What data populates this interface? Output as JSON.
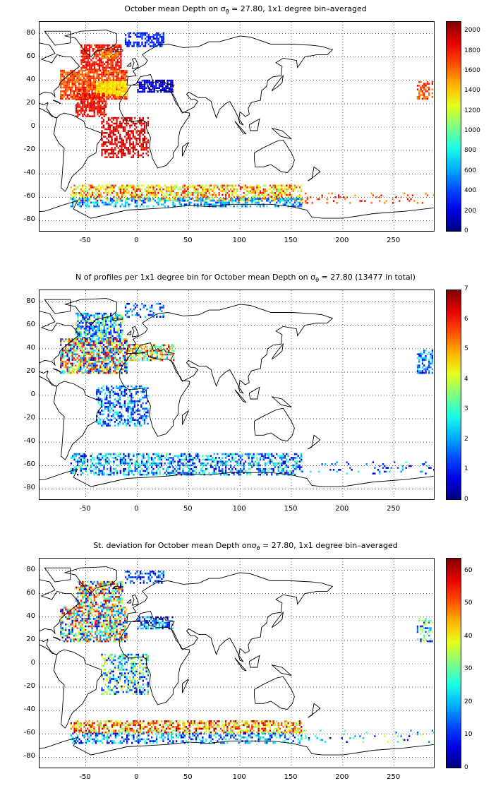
{
  "panels": [
    {
      "id": "depth",
      "title_pre": "October mean Depth on σ",
      "title_sub": "θ",
      "title_post": " = 27.80, 1x1 degree bin–averaged",
      "colorbar_ticks": [
        "2000",
        "1800",
        "1600",
        "1400",
        "1200",
        "1000",
        "800",
        "600",
        "400",
        "200",
        "0"
      ],
      "colorbar_range": [
        0,
        2100
      ]
    },
    {
      "id": "count",
      "title_pre": "N of profiles per 1x1 degree bin for October mean Depth on σ",
      "title_sub": "θ",
      "title_post": " = 27.80 (13477 in total)",
      "colorbar_ticks": [
        "7",
        "6",
        "5",
        "4",
        "3",
        "2",
        "1",
        "0"
      ],
      "colorbar_range": [
        0,
        7
      ]
    },
    {
      "id": "stdev",
      "title_pre": "St. deviation for October mean Depth onσ",
      "title_sub": "θ",
      "title_post": " = 27.80, 1x1 degree bin–averaged",
      "colorbar_ticks": [
        "60",
        "50",
        "40",
        "30",
        "20",
        "10",
        "0"
      ],
      "colorbar_range": [
        0,
        64
      ]
    }
  ],
  "map": {
    "x_ticks": [
      "-50",
      "0",
      "50",
      "100",
      "150",
      "200",
      "250"
    ],
    "y_ticks": [
      "80",
      "60",
      "40",
      "20",
      "0",
      "-20",
      "-40",
      "-60",
      "-80"
    ],
    "lon_range": [
      -95,
      290
    ],
    "lat_range": [
      -90,
      90
    ],
    "grid": true,
    "colormap": "jet"
  }
}
